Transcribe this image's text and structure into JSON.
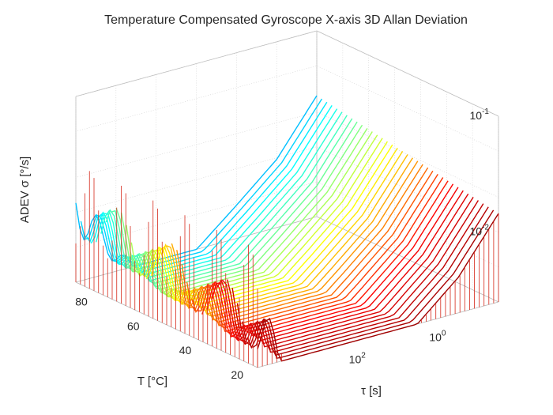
{
  "chart_data": {
    "type": "surface",
    "title": "Temperature Compensated Gyroscope X-axis 3D Allan Deviation",
    "xlabel": "τ [s]",
    "ylabel": "T [°C]",
    "zlabel": "ADEV σ [°/s]",
    "x_scale": "log",
    "z_scale": "log",
    "x_ticks": [
      {
        "value": 1,
        "base": "10",
        "exp": "0"
      },
      {
        "value": 100,
        "base": "10",
        "exp": "2"
      }
    ],
    "y_ticks": [
      20,
      40,
      60,
      80
    ],
    "z_ticks": [
      {
        "value": 0.01,
        "base": "10",
        "exp": "-2"
      },
      {
        "value": 0.1,
        "base": "10",
        "exp": "-1"
      }
    ],
    "xlim": [
      0.01,
      10000
    ],
    "ylim": [
      20,
      90
    ],
    "zlim": [
      0.0025,
      0.1
    ],
    "grid": true,
    "colormap": "jet",
    "colors": [
      "#00008f",
      "#0000ff",
      "#00ffff",
      "#ffff00",
      "#ff0000",
      "#800000"
    ],
    "edge_color": "#d6281a",
    "approx_adev_by_tau": {
      "tau": [
        0.01,
        0.1,
        1,
        10,
        100,
        1000,
        10000
      ],
      "adev_at_T90": [
        0.02,
        0.007,
        0.0035,
        0.0018,
        0.0012,
        0.0025,
        0.008
      ]
    }
  }
}
